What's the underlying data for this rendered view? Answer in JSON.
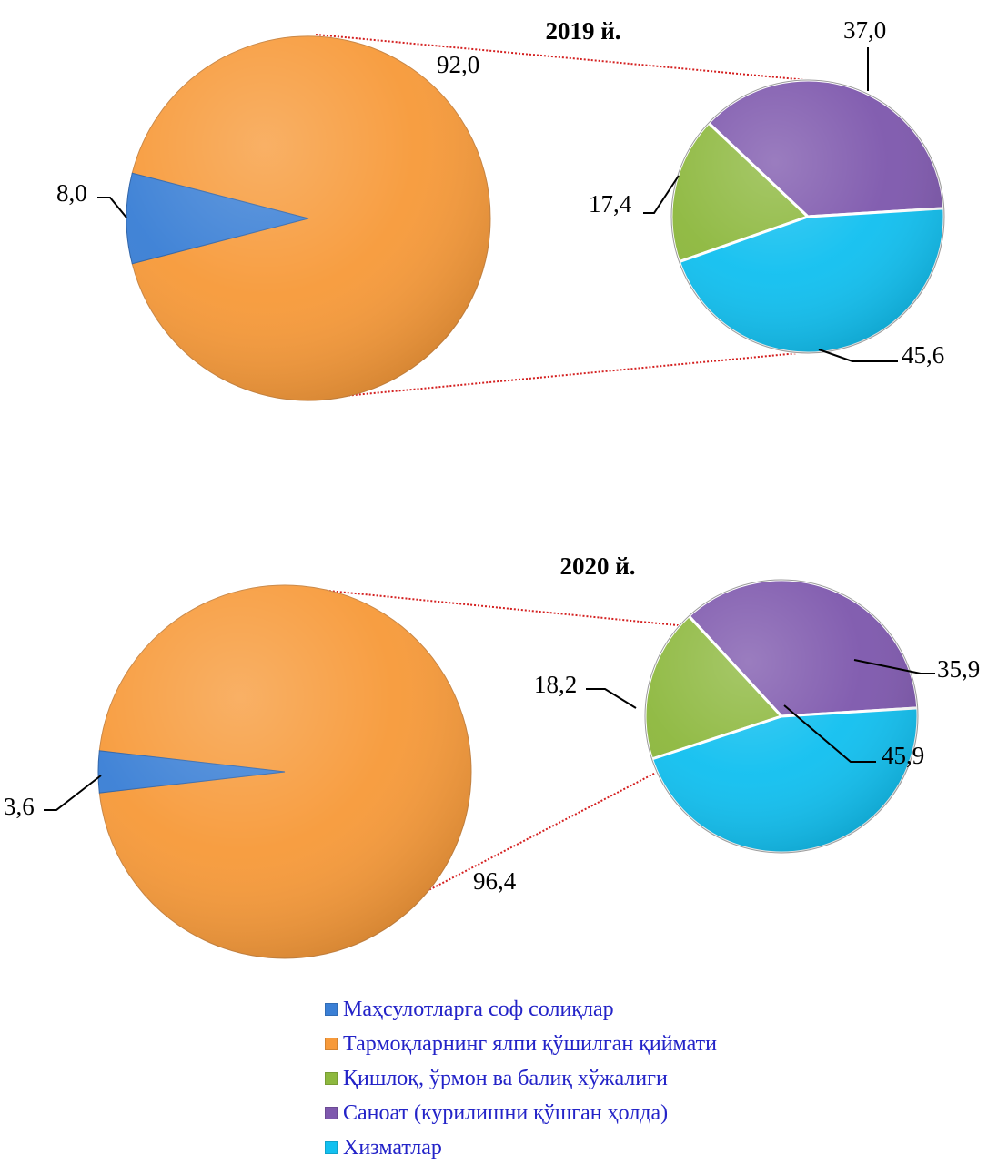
{
  "chart_data": [
    {
      "type": "pie-of-pie",
      "title": "2019 й.",
      "main": [
        {
          "name": "Маҳсулотларга соф солиқлар",
          "value": 8.0,
          "label": "8,0",
          "color": "#3a7fd5"
        },
        {
          "name": "Тармоқларнинг ялпи қўшилган қиймати",
          "value": 92.0,
          "label": "92,0",
          "color": "#f79a3a"
        }
      ],
      "secondary": [
        {
          "name": "Саноат (курилишни қўшган ҳолда)",
          "value": 37.0,
          "label": "37,0",
          "color": "#7e58ad"
        },
        {
          "name": "Хизматлар",
          "value": 45.6,
          "label": "45,6",
          "color": "#12c0f0"
        },
        {
          "name": "Қишлоқ, ўрмон ва балиқ хўжалиги",
          "value": 17.4,
          "label": "17,4",
          "color": "#8db83e"
        }
      ]
    },
    {
      "type": "pie-of-pie",
      "title": "2020 й.",
      "main": [
        {
          "name": "Маҳсулотларга соф солиқлар",
          "value": 3.6,
          "label": "3,6",
          "color": "#3a7fd5"
        },
        {
          "name": "Тармоқларнинг ялпи қўшилган қиймати",
          "value": 96.4,
          "label": "96,4",
          "color": "#f79a3a"
        }
      ],
      "secondary": [
        {
          "name": "Саноат (курилишни қўшган ҳолда)",
          "value": 35.9,
          "label": "35,9",
          "color": "#7e58ad"
        },
        {
          "name": "Хизматлар",
          "value": 45.9,
          "label": "45,9",
          "color": "#12c0f0"
        },
        {
          "name": "Қишлоқ, ўрмон ва балиқ хўжалиги",
          "value": 18.2,
          "label": "18,2",
          "color": "#8db83e"
        }
      ]
    }
  ],
  "legend": {
    "position": "bottom",
    "items": [
      {
        "label": "Маҳсулотларга соф солиқлар",
        "color": "#3a7fd5"
      },
      {
        "label": "Тармоқларнинг ялпи қўшилган қиймати",
        "color": "#f79a3a"
      },
      {
        "label": "Қишлоқ, ўрмон ва балиқ хўжалиги",
        "color": "#8db83e"
      },
      {
        "label": "Саноат (курилишни қўшган ҳолда)",
        "color": "#7e58ad"
      },
      {
        "label": "Хизматлар",
        "color": "#12c0f0"
      }
    ]
  }
}
